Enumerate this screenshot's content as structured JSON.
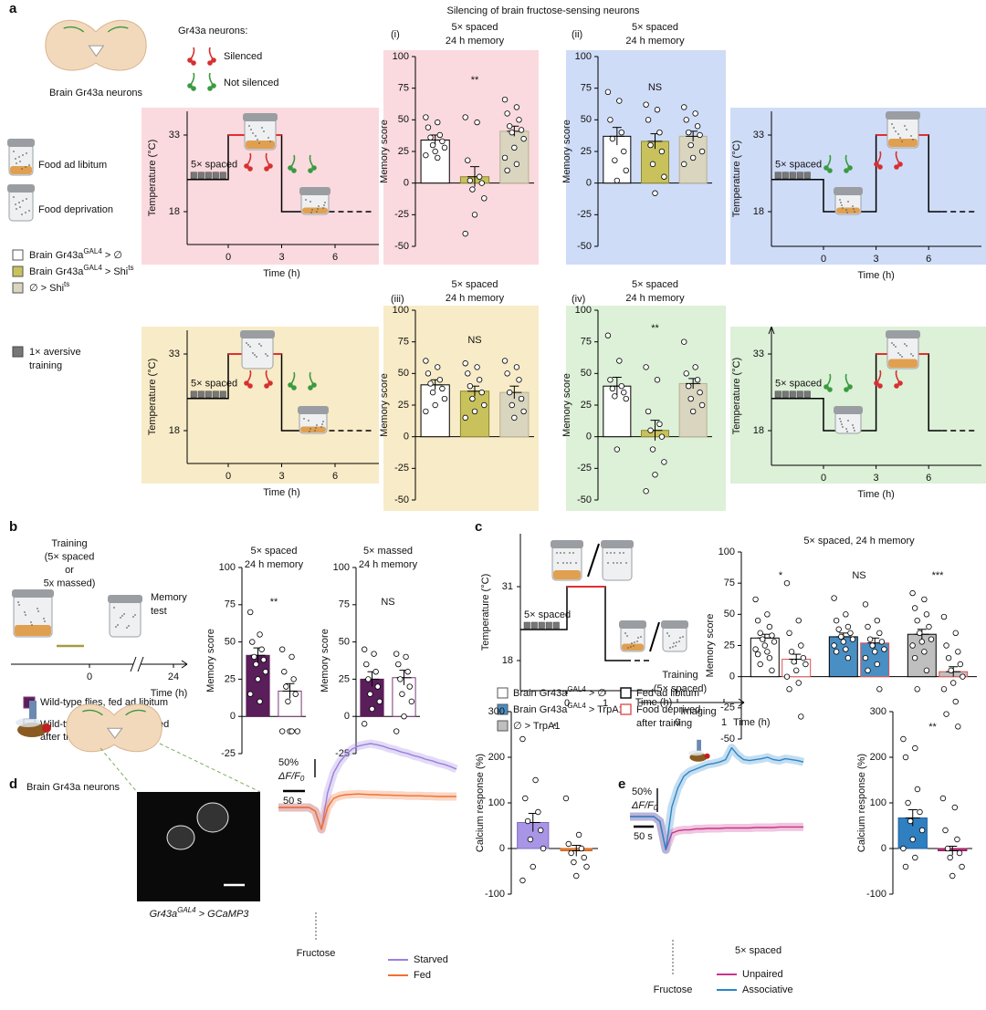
{
  "panel_labels": [
    "a",
    "b",
    "c",
    "d",
    "e"
  ],
  "a": {
    "heading": "Silencing of brain fructose-sensing neurons",
    "brain_label": "Brain Gr43a neurons",
    "neurons_title": "Gr43a neurons:",
    "silenced": "Silenced",
    "not_silenced": "Not silenced",
    "food_ad": "Food ad libitum",
    "food_dep": "Food deprivation",
    "genotypes": [
      [
        "Brain Gr43a",
        "GAL4",
        " > ∅"
      ],
      [
        "Brain Gr43a",
        "GAL4",
        " > Shi",
        "ts"
      ],
      [
        "∅ > Shi",
        "ts"
      ]
    ],
    "genotype_colors": [
      "#ffffff",
      "#c9c25c",
      "#d9d5bf"
    ],
    "training": [
      "1× aversive",
      "training"
    ],
    "protocols": [
      {
        "background": "#fadadf",
        "ylabel": "Temperature (°C)",
        "xlabel": "Time (h)",
        "yticks": [
          18,
          33
        ],
        "xticks": [
          0,
          3,
          6
        ],
        "train": "5× spaced"
      },
      {
        "background": "#cfdcf7",
        "ylabel": "Temperature (°C)",
        "xlabel": "Time (h)",
        "yticks": [
          18,
          33
        ],
        "xticks": [
          0,
          3,
          6
        ],
        "train": "5× spaced"
      },
      {
        "background": "#f8ebc7",
        "ylabel": "Temperature (°C)",
        "xlabel": "Time (h)",
        "yticks": [
          18,
          33
        ],
        "xticks": [
          0,
          3,
          6
        ],
        "train": "5× spaced"
      },
      {
        "background": "#ddf0d8",
        "ylabel": "Temperature (°C)",
        "xlabel": "Time (h)",
        "yticks": [
          18,
          33
        ],
        "xticks": [
          0,
          3,
          6
        ],
        "train": "5× spaced"
      }
    ],
    "charts": [
      {
        "type": "bar",
        "roman": "(i)",
        "title": [
          "5× spaced",
          "24 h memory"
        ],
        "annotation": "**",
        "background": "#fadadf",
        "ylabel": "Memory score",
        "ylim": [
          -50,
          100
        ],
        "yticks": [
          -50,
          -25,
          0,
          25,
          50,
          75,
          100
        ],
        "values": [
          34,
          5,
          41
        ],
        "errors": [
          4,
          8,
          4
        ],
        "fills": [
          "#ffffff",
          "#c9c25c",
          "#d9d5bf"
        ],
        "edges": [
          "#000000",
          "#8a8530",
          "#b8b090"
        ],
        "points": [
          [
            52,
            48,
            44,
            38,
            36,
            33,
            30,
            28,
            25,
            22,
            20
          ],
          [
            52,
            48,
            18,
            5,
            2,
            0,
            -5,
            -12,
            -25,
            -40
          ],
          [
            66,
            60,
            55,
            50,
            45,
            42,
            40,
            35,
            28,
            20,
            15,
            10
          ]
        ]
      },
      {
        "type": "bar",
        "roman": "(ii)",
        "title": [
          "5× spaced",
          "24 h memory"
        ],
        "annotation": "NS",
        "background": "#cfdcf7",
        "ylabel": "Memory score",
        "ylim": [
          -50,
          100
        ],
        "yticks": [
          -50,
          -25,
          0,
          25,
          50,
          75,
          100
        ],
        "values": [
          37,
          33,
          37
        ],
        "errors": [
          7,
          6,
          4
        ],
        "fills": [
          "#ffffff",
          "#c9c25c",
          "#d9d5bf"
        ],
        "edges": [
          "#000000",
          "#8a8530",
          "#b8b090"
        ],
        "points": [
          [
            72,
            65,
            50,
            40,
            35,
            25,
            18,
            10,
            2
          ],
          [
            62,
            58,
            50,
            40,
            30,
            25,
            15,
            5,
            -8
          ],
          [
            60,
            55,
            50,
            45,
            40,
            38,
            30,
            25,
            20,
            15
          ]
        ]
      },
      {
        "type": "bar",
        "roman": "(iii)",
        "title": [
          "5× spaced",
          "24 h memory"
        ],
        "annotation": "NS",
        "background": "#f8ebc7",
        "ylabel": "Memory score",
        "ylim": [
          -50,
          100
        ],
        "yticks": [
          -50,
          -25,
          0,
          25,
          50,
          75,
          100
        ],
        "values": [
          41,
          36,
          35
        ],
        "errors": [
          4,
          4,
          5
        ],
        "fills": [
          "#ffffff",
          "#c9c25c",
          "#d9d5bf"
        ],
        "edges": [
          "#000000",
          "#8a8530",
          "#b8b090"
        ],
        "points": [
          [
            60,
            55,
            50,
            45,
            42,
            38,
            35,
            30,
            25,
            20
          ],
          [
            58,
            55,
            50,
            45,
            40,
            35,
            30,
            25,
            20,
            15
          ],
          [
            60,
            55,
            50,
            45,
            35,
            30,
            25,
            20,
            15
          ]
        ]
      },
      {
        "type": "bar",
        "roman": "(iv)",
        "title": [
          "5× spaced",
          "24 h memory"
        ],
        "annotation": "**",
        "background": "#ddf0d8",
        "ylabel": "Memory score",
        "ylim": [
          -50,
          100
        ],
        "yticks": [
          -50,
          -25,
          0,
          25,
          50,
          75,
          100
        ],
        "values": [
          40,
          5,
          42
        ],
        "errors": [
          7,
          8,
          4
        ],
        "fills": [
          "#ffffff",
          "#c9c25c",
          "#d9d5bf"
        ],
        "edges": [
          "#000000",
          "#8a8530",
          "#b8b090"
        ],
        "points": [
          [
            80,
            60,
            45,
            40,
            38,
            35,
            32,
            30,
            -10
          ],
          [
            55,
            45,
            20,
            10,
            5,
            0,
            -10,
            -20,
            -30,
            -43
          ],
          [
            75,
            55,
            50,
            45,
            40,
            35,
            30,
            25,
            20
          ]
        ]
      }
    ]
  },
  "b": {
    "training": [
      "Training",
      "(5× spaced",
      "or",
      "5x massed)"
    ],
    "memory_test": [
      "Memory",
      "test"
    ],
    "xticks": [
      0,
      24
    ],
    "xlabel": "Time (h)",
    "legend": [
      [
        "Wild-type flies, fed ad libitum"
      ],
      [
        "Wild-type flies, food deprived",
        "after training"
      ]
    ],
    "legend_colors": [
      "#5a1e5a",
      "#ffffff"
    ],
    "charts": [
      {
        "type": "bar",
        "title": [
          "5× spaced",
          "24 h memory"
        ],
        "annotation": "**",
        "ylabel": "Memory score",
        "ylim": [
          -25,
          100
        ],
        "yticks": [
          -25,
          0,
          25,
          50,
          75,
          100
        ],
        "values": [
          41,
          17
        ],
        "errors": [
          5,
          5
        ],
        "fills": [
          "#5a1e5a",
          "#ffffff"
        ],
        "edges": [
          "#5a1e5a",
          "#7a3a7a"
        ],
        "points": [
          [
            70,
            55,
            50,
            45,
            40,
            38,
            35,
            30,
            25,
            15,
            10
          ],
          [
            45,
            40,
            30,
            25,
            20,
            15,
            10,
            -10,
            -10,
            -10,
            -10
          ]
        ]
      },
      {
        "type": "bar",
        "title": [
          "5× massed",
          "24 h memory"
        ],
        "annotation": "NS",
        "ylabel": "Memory score",
        "ylim": [
          -25,
          100
        ],
        "yticks": [
          -25,
          0,
          25,
          50,
          75,
          100
        ],
        "values": [
          25,
          26
        ],
        "errors": [
          5,
          5
        ],
        "fills": [
          "#5a1e5a",
          "#ffffff"
        ],
        "edges": [
          "#5a1e5a",
          "#7a3a7a"
        ],
        "points": [
          [
            45,
            42,
            35,
            30,
            25,
            20,
            15,
            10,
            5,
            -5
          ],
          [
            42,
            40,
            35,
            30,
            25,
            20,
            15,
            10,
            0,
            -10
          ]
        ]
      }
    ]
  },
  "c": {
    "protocol": {
      "ylabel": "Temperature (°C)",
      "xlabel": "Time (h)",
      "yticks": [
        18,
        31
      ],
      "xticks": [
        0,
        1
      ],
      "train": "5× spaced"
    },
    "genotypes": [
      [
        "Brain Gr43a",
        "GAL4",
        " > ∅"
      ],
      [
        "Brain Gr43a",
        "GAL4",
        " > TrpA1"
      ],
      [
        "∅ > TrpA1"
      ]
    ],
    "genotype_colors": [
      "#ffffff",
      "#4a8fc4",
      "#bfbfbf"
    ],
    "food_legend": [
      [
        "Fed ad libitum"
      ],
      [
        "Food deprived",
        "after training"
      ]
    ],
    "food_colors": [
      "#000000",
      "#e05050"
    ],
    "chart": {
      "type": "bar",
      "title": [
        "5× spaced, 24 h memory"
      ],
      "annotations": [
        "*",
        "NS",
        "***"
      ],
      "ylabel": "Memory score",
      "ylim": [
        -50,
        100
      ],
      "yticks": [
        -50,
        -25,
        0,
        25,
        50,
        75,
        100
      ],
      "values": [
        31,
        14,
        32,
        27,
        34,
        4
      ],
      "errors": [
        3,
        4,
        3,
        4,
        4,
        4
      ],
      "fills": [
        "#ffffff",
        "#ffffff",
        "#4a8fc4",
        "#4a8fc4",
        "#bfbfbf",
        "#bfbfbf"
      ],
      "edges": [
        "#000000",
        "#e05050",
        "#000000",
        "#e05050",
        "#000000",
        "#e05050"
      ],
      "points": [
        [
          62,
          50,
          45,
          40,
          35,
          33,
          30,
          28,
          25,
          22,
          20,
          18,
          15,
          10,
          5
        ],
        [
          75,
          45,
          35,
          25,
          20,
          15,
          12,
          10,
          5,
          0,
          -5,
          -10,
          -32
        ],
        [
          63,
          50,
          45,
          40,
          38,
          35,
          32,
          30,
          28,
          25,
          22,
          20,
          15
        ],
        [
          58,
          45,
          40,
          35,
          30,
          28,
          25,
          22,
          20,
          15,
          10,
          5,
          -10
        ],
        [
          67,
          62,
          55,
          50,
          45,
          40,
          35,
          30,
          28,
          25,
          20,
          15,
          5,
          -10
        ],
        [
          48,
          35,
          25,
          20,
          15,
          10,
          5,
          0,
          -5,
          -10,
          -20,
          -30,
          -40
        ]
      ]
    }
  },
  "d": {
    "brain_label": "Brain Gr43a neurons",
    "image_label": [
      "Gr43a",
      "GAL4",
      " > GCaMP3"
    ],
    "scale_y": {
      "value": 50,
      "label": "50%"
    },
    "dff": [
      "ΔF/F",
      "0"
    ],
    "scale_x": "50 s",
    "stimulus": "Fructose",
    "traces": [
      {
        "name": "Starved",
        "color": "#9b7fe0",
        "values": [
          0,
          0,
          0,
          0,
          0,
          0,
          -10,
          -60,
          40,
          95,
          125,
          145,
          160,
          168,
          172,
          175,
          172,
          168,
          162,
          158,
          152,
          148,
          142,
          138,
          132,
          128,
          122,
          118,
          112,
          105
        ]
      },
      {
        "name": "Fed",
        "color": "#f07030",
        "values": [
          0,
          0,
          0,
          0,
          0,
          0,
          -10,
          -60,
          0,
          25,
          32,
          35,
          36,
          37,
          36,
          35,
          35,
          34,
          34,
          33,
          33,
          32,
          32,
          32,
          31,
          31,
          30,
          30,
          30,
          30
        ]
      }
    ],
    "chart": {
      "type": "bar",
      "annotation": "*",
      "ylabel": "Calcium response (%)",
      "ylim": [
        -100,
        300
      ],
      "yticks": [
        -100,
        0,
        100,
        200,
        300
      ],
      "values": [
        57,
        -5
      ],
      "errors": [
        20,
        12
      ],
      "fills": [
        "#a995e6",
        "#f08030"
      ],
      "edges": [
        "#7f6ac4",
        "#c86020"
      ],
      "points": [
        [
          240,
          150,
          110,
          80,
          60,
          40,
          20,
          0,
          -40,
          -70
        ],
        [
          110,
          30,
          10,
          0,
          -10,
          -20,
          -30,
          -40,
          -60
        ]
      ]
    }
  },
  "e": {
    "training": [
      "Training",
      "(5× spaced)"
    ],
    "imaging": "Imaging",
    "xticks": [
      0,
      1
    ],
    "xlabel": "Time (h)",
    "scale_y": {
      "value": 50,
      "label": "50%"
    },
    "dff": [
      "ΔF/F",
      "0"
    ],
    "scale_x": "50 s",
    "stimulus": "Fructose",
    "condition": "5× spaced",
    "traces": [
      {
        "name": "Unpaired",
        "color": "#c8348c",
        "values": [
          0,
          0,
          0,
          0,
          0,
          -10,
          -70,
          -35,
          -30,
          -28,
          -28,
          -26,
          -26,
          -25,
          -25,
          -25,
          -24,
          -24,
          -24,
          -24,
          -24,
          -23,
          -23,
          -23,
          -23,
          -22,
          -22,
          -22,
          -22,
          -22
        ]
      },
      {
        "name": "Associative",
        "color": "#2a86c8",
        "values": [
          0,
          0,
          0,
          0,
          0,
          -10,
          -70,
          20,
          60,
          85,
          95,
          100,
          105,
          110,
          112,
          115,
          120,
          145,
          130,
          120,
          118,
          120,
          122,
          125,
          120,
          118,
          122,
          120,
          118,
          115
        ]
      }
    ],
    "chart": {
      "type": "bar",
      "annotation": "**",
      "ylabel": "Calcium response (%)",
      "ylim": [
        -100,
        300
      ],
      "yticks": [
        -100,
        0,
        100,
        200,
        300
      ],
      "values": [
        67,
        -5
      ],
      "errors": [
        18,
        10
      ],
      "fills": [
        "#2f7fc1",
        "#c0307a"
      ],
      "edges": [
        "#2060a0",
        "#901858"
      ],
      "points": [
        [
          240,
          220,
          200,
          130,
          100,
          80,
          60,
          40,
          20,
          0,
          -20,
          -40
        ],
        [
          110,
          90,
          40,
          20,
          0,
          -10,
          -20,
          -40,
          -60
        ]
      ]
    }
  }
}
